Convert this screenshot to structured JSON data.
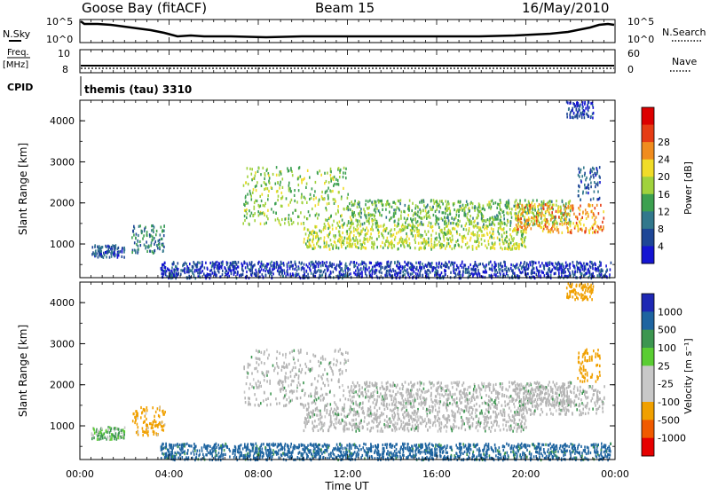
{
  "header": {
    "station": "Goose Bay (fitACF)",
    "beam": "Beam 15",
    "date": "16/May/2010"
  },
  "summary": {
    "nsky_label": "N.Sky",
    "nsky_ticks": [
      "10^5",
      "10^0"
    ],
    "nsearch_label": "N.Search",
    "nsearch_ticks": [
      "10^5",
      "10^0"
    ],
    "freq_label": "Freq.",
    "freq_unit": "[MHz]",
    "freq_ticks": [
      "10",
      "8"
    ],
    "nave_label": "Nave",
    "nave_ticks": [
      "60",
      "0"
    ],
    "cpid_label": "CPID",
    "cpid_text": "themis (tau) 3310"
  },
  "colors": {
    "power_scale": [
      "#1414d2",
      "#1e4696",
      "#32788c",
      "#3ca050",
      "#a0d23c",
      "#f0dc28",
      "#f08c1e",
      "#e63c14",
      "#dc0000"
    ],
    "velocity_scale": [
      "#e60000",
      "#f05a00",
      "#f0a000",
      "#c8c8c8",
      "#c8c8c8",
      "#5acd32",
      "#3c9650",
      "#1e64a0",
      "#1e28b4"
    ],
    "ground_scatter": "#b4b4b4"
  },
  "panels": {
    "power": {
      "ylabel": "Slant Range [km]",
      "yticks": [
        "1000",
        "2000",
        "3000",
        "4000"
      ],
      "colorbar_title": "Power [dB]",
      "colorbar_ticks": [
        "4",
        "8",
        "12",
        "16",
        "20",
        "24",
        "28"
      ]
    },
    "velocity": {
      "ylabel": "Slant Range [km]",
      "yticks": [
        "1000",
        "2000",
        "3000",
        "4000"
      ],
      "colorbar_title": "Velocity [m s⁻¹]",
      "colorbar_ticks": [
        "1000",
        "500",
        "100",
        "25",
        "-25",
        "-100",
        "-500",
        "-1000"
      ]
    }
  },
  "xaxis": {
    "label": "Time UT",
    "ticks": [
      "00:00",
      "04:00",
      "08:00",
      "12:00",
      "16:00",
      "20:00",
      "00:00"
    ]
  },
  "chart_data": {
    "type": "heatmap",
    "title": "Goose Bay (fitACF) Beam 15 16/May/2010",
    "xlabel": "Time UT",
    "ylabel": "Slant Range [km]",
    "xlim_hours": [
      0,
      24
    ],
    "ylim_km": [
      180,
      4500
    ],
    "power_range_db": [
      0,
      30
    ],
    "velocity_range_ms": [
      -1000,
      1000
    ],
    "scatter_regions": [
      {
        "t0": 0.5,
        "t1": 2.0,
        "r0": 700,
        "r1": 1000,
        "power": 6,
        "velocity": 25
      },
      {
        "t0": 2.3,
        "t1": 3.8,
        "r0": 800,
        "r1": 1500,
        "power": 9,
        "velocity": -150
      },
      {
        "t0": 3.6,
        "t1": 23.8,
        "r0": 200,
        "r1": 600,
        "power": 4,
        "velocity": 150
      },
      {
        "t0": 7.3,
        "t1": 12.0,
        "r0": 1500,
        "r1": 2900,
        "power": 14,
        "velocity": 0
      },
      {
        "t0": 10.0,
        "t1": 20.0,
        "r0": 900,
        "r1": 1500,
        "power": 16,
        "velocity": 0
      },
      {
        "t0": 12.0,
        "t1": 22.0,
        "r0": 1500,
        "r1": 2100,
        "power": 13,
        "velocity": 0
      },
      {
        "t0": 19.5,
        "t1": 23.5,
        "r0": 1300,
        "r1": 2000,
        "power": 21,
        "velocity": 0
      },
      {
        "t0": 22.3,
        "t1": 23.3,
        "r0": 2100,
        "r1": 2900,
        "power": 6,
        "velocity": -200
      },
      {
        "t0": 21.8,
        "t1": 23.0,
        "r0": 4100,
        "r1": 4500,
        "power": 4,
        "velocity": -300
      }
    ]
  }
}
